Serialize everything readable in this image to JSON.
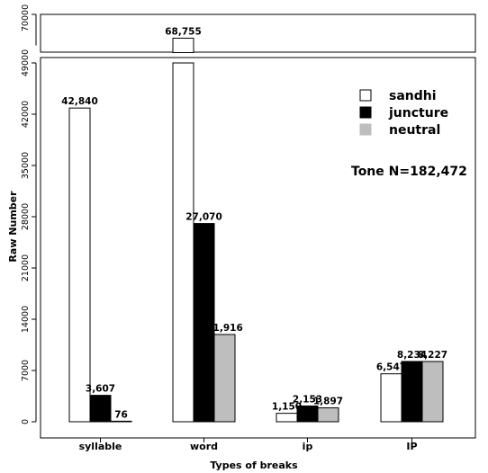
{
  "chart_data": {
    "type": "bar",
    "xlabel": "Types of breaks",
    "ylabel": "Raw Number",
    "categories": [
      "syllable",
      "word",
      "ip",
      "IP"
    ],
    "series": [
      {
        "name": "sandhi",
        "values": [
          42840,
          68755,
          1150,
          6547
        ],
        "labels": [
          "42,840",
          "68,755",
          "1,150",
          "6,547"
        ],
        "color": "#ffffff"
      },
      {
        "name": "juncture",
        "values": [
          3607,
          27070,
          2153,
          8234
        ],
        "labels": [
          "3,607",
          "27,070",
          "2,153",
          "8,234"
        ],
        "color": "#000000"
      },
      {
        "name": "neutral",
        "values": [
          76,
          11916,
          1897,
          8227
        ],
        "labels": [
          "76",
          "11,916",
          "1,897",
          "8,227"
        ],
        "color": "#bebebe"
      }
    ],
    "axis_break": true,
    "lower_axis": {
      "range": [
        0,
        49000
      ],
      "ticks": [
        "0",
        "7000",
        "14000",
        "21000",
        "28000",
        "35000",
        "42000",
        "49000"
      ]
    },
    "upper_axis": {
      "range": [
        68000,
        70000
      ],
      "ticks": [
        "70000"
      ]
    },
    "annotation": "Tone N=182,472",
    "legend_position": "top-right",
    "grid": false
  }
}
